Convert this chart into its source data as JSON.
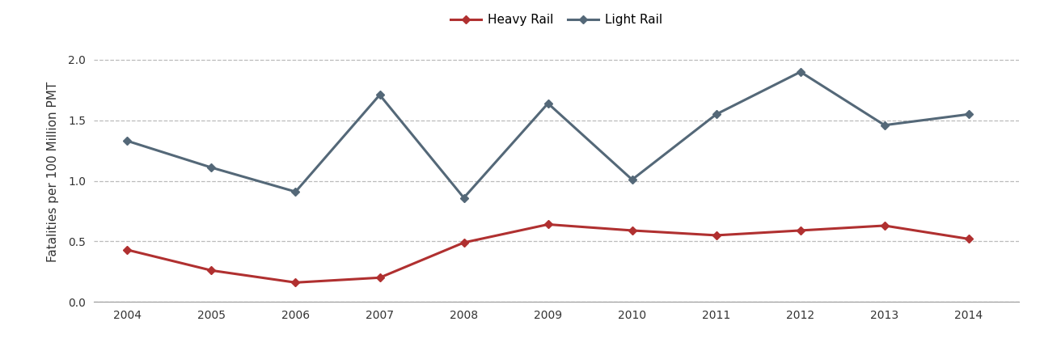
{
  "years": [
    2004,
    2005,
    2006,
    2007,
    2008,
    2009,
    2010,
    2011,
    2012,
    2013,
    2014
  ],
  "heavy_rail": [
    0.43,
    0.26,
    0.16,
    0.2,
    0.49,
    0.64,
    0.59,
    0.55,
    0.59,
    0.63,
    0.52
  ],
  "light_rail": [
    1.33,
    1.11,
    0.91,
    1.71,
    0.86,
    1.64,
    1.01,
    1.55,
    1.9,
    1.46,
    1.55
  ],
  "heavy_rail_color": "#b03030",
  "light_rail_color": "#546878",
  "heavy_rail_label": "Heavy Rail",
  "light_rail_label": "Light Rail",
  "ylabel": "Fatalities per 100 Million PMT",
  "ylim": [
    0.0,
    2.15
  ],
  "yticks": [
    0.0,
    0.5,
    1.0,
    1.5,
    2.0
  ],
  "grid_color": "#bbbbbb",
  "background_color": "#ffffff",
  "line_width": 2.2,
  "marker": "D",
  "marker_size": 5,
  "legend_fontsize": 11
}
